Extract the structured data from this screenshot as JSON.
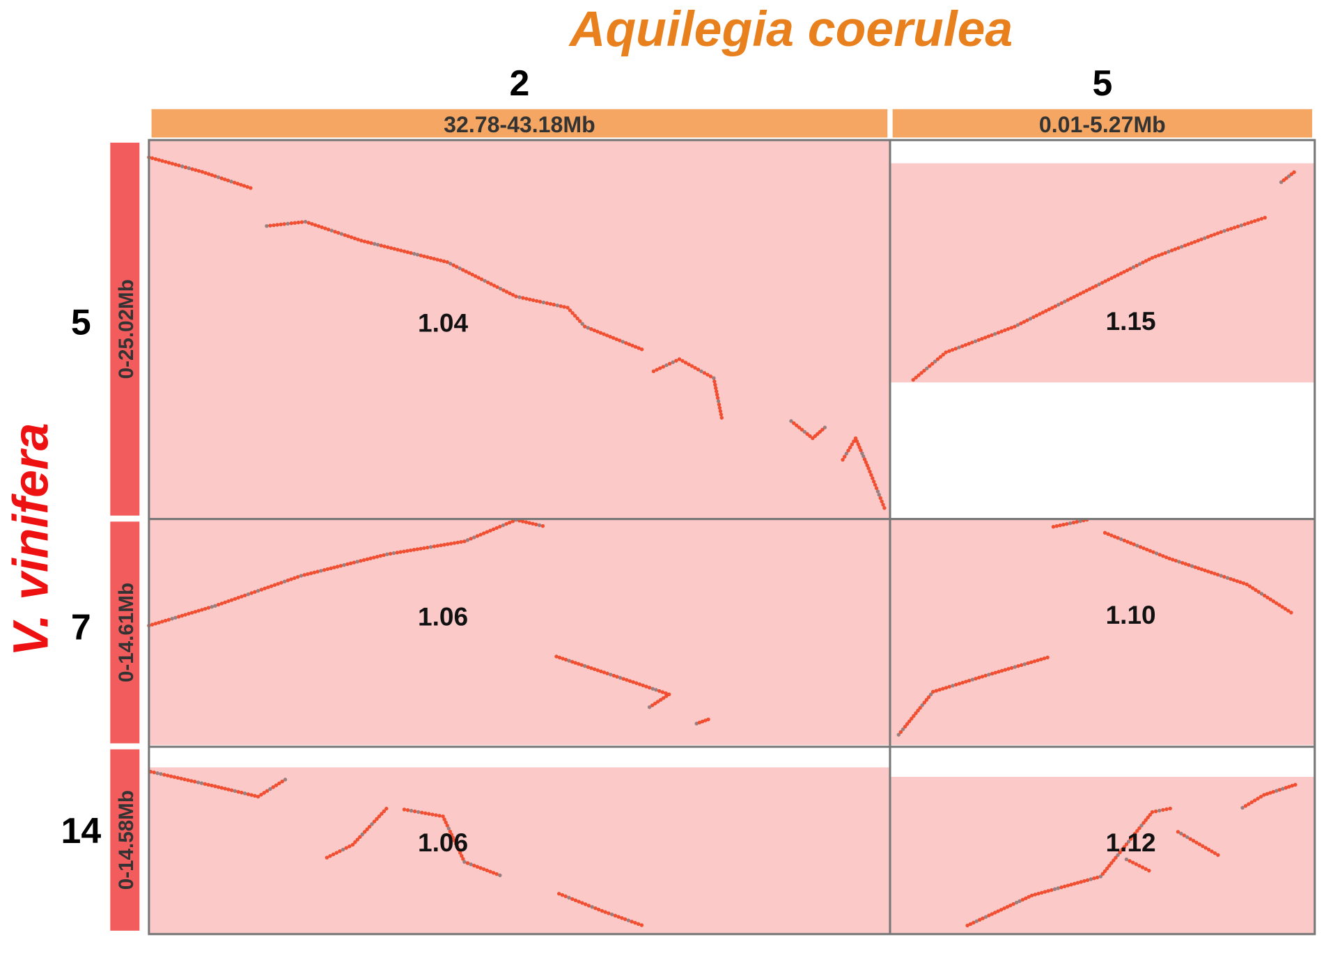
{
  "title_x": "Aquilegia coerulea",
  "title_y": "V. vinifera",
  "columns": [
    {
      "label": "2",
      "range": "32.78-43.18Mb"
    },
    {
      "label": "5",
      "range": "0.01-5.27Mb"
    }
  ],
  "rows": [
    {
      "label": "5",
      "range": "0-25.02Mb"
    },
    {
      "label": "7",
      "range": "0-14.61Mb"
    },
    {
      "label": "14",
      "range": "0-14.58Mb"
    }
  ],
  "cells": [
    [
      "1.04",
      "1.15"
    ],
    [
      "1.06",
      "1.10"
    ],
    [
      "1.06",
      "1.12"
    ]
  ]
}
